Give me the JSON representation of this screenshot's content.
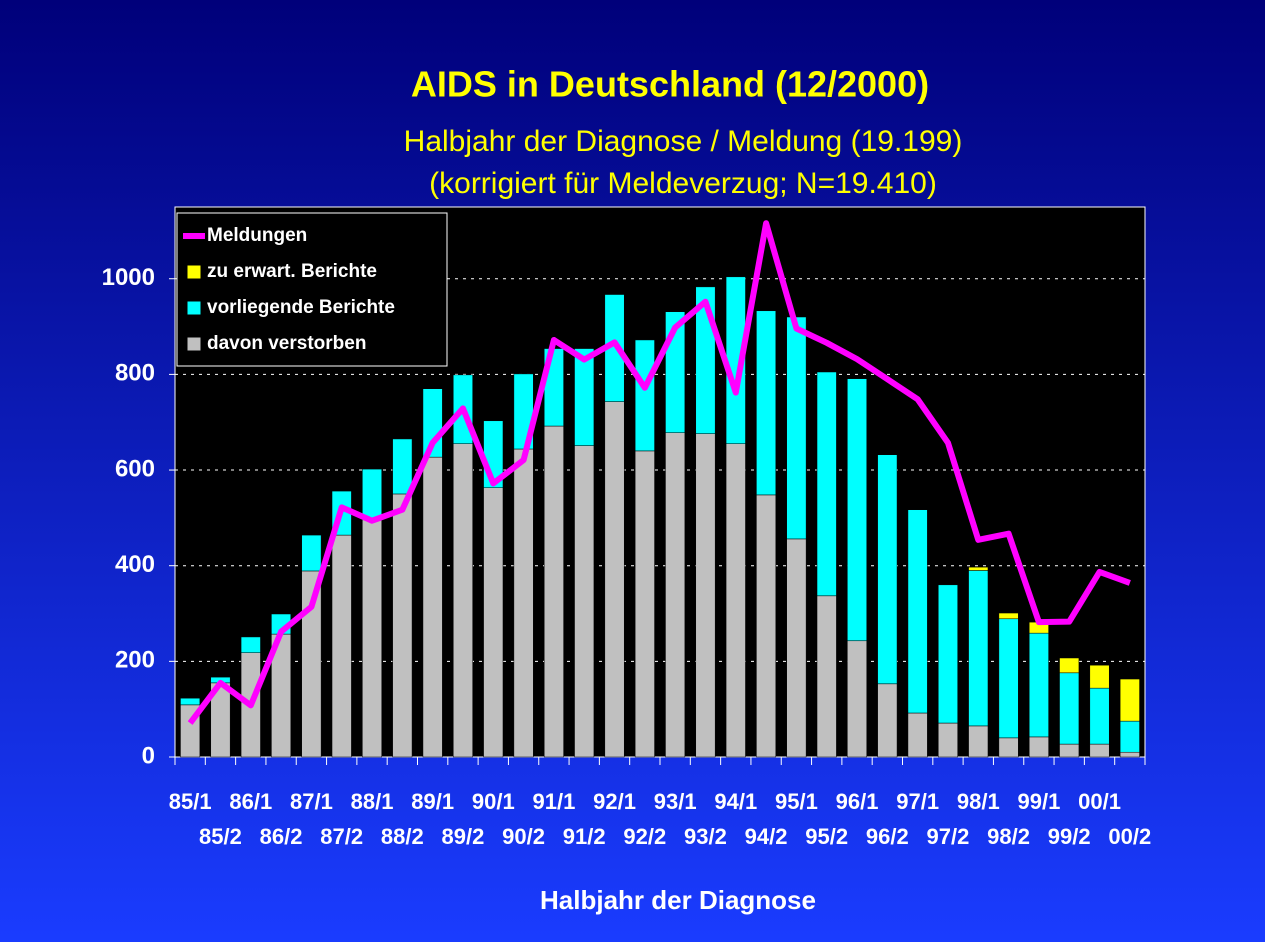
{
  "chart_data": {
    "type": "bar",
    "stacked": true,
    "title": "AIDS in Deutschland (12/2000)",
    "subtitle": [
      "Halbjahr der Diagnose / Meldung (19.199)",
      "(korrigiert für Meldeverzug; N=19.410)"
    ],
    "x_label": "Halbjahr der Diagnose",
    "categories": [
      "85/1",
      "85/2",
      "86/1",
      "86/2",
      "87/1",
      "87/2",
      "88/1",
      "88/2",
      "89/1",
      "89/2",
      "90/1",
      "90/2",
      "91/1",
      "91/2",
      "92/1",
      "92/2",
      "93/1",
      "93/2",
      "94/1",
      "94/2",
      "95/1",
      "95/2",
      "96/1",
      "96/2",
      "97/1",
      "97/2",
      "98/1",
      "98/2",
      "99/1",
      "99/2",
      "00/1",
      "00/2"
    ],
    "series": [
      {
        "name": "Meldungen",
        "type": "line",
        "color": "#ff00ff",
        "values": [
          71,
          155,
          108,
          262,
          314,
          522,
          494,
          517,
          657,
          729,
          572,
          621,
          872,
          831,
          867,
          772,
          898,
          952,
          762,
          1116,
          896,
          866,
          832,
          790,
          748,
          657,
          454,
          467,
          282,
          283,
          387,
          364
        ]
      },
      {
        "name": "zu erwart. Berichte",
        "type": "bar",
        "color": "#ffff00",
        "values": [
          0,
          0,
          0,
          0,
          0,
          0,
          0,
          0,
          0,
          0,
          0,
          0,
          0,
          0,
          0,
          0,
          0,
          0,
          0,
          0,
          0,
          0,
          0,
          0,
          0,
          0,
          7,
          12,
          23,
          31,
          48,
          88
        ]
      },
      {
        "name": "vorliegende Berichte",
        "type": "bar",
        "color": "#00ffff",
        "values": [
          14,
          12,
          33,
          42,
          75,
          92,
          106,
          115,
          143,
          144,
          140,
          157,
          162,
          203,
          224,
          232,
          253,
          307,
          349,
          385,
          464,
          468,
          548,
          479,
          425,
          289,
          325,
          249,
          217,
          149,
          117,
          65
        ]
      },
      {
        "name": "davon verstorben",
        "type": "bar",
        "color": "#c0c0c0",
        "values": [
          109,
          155,
          218,
          257,
          389,
          464,
          496,
          550,
          627,
          655,
          563,
          644,
          692,
          651,
          743,
          640,
          678,
          676,
          655,
          548,
          456,
          337,
          243,
          153,
          92,
          71,
          65,
          40,
          42,
          27,
          27,
          10
        ]
      }
    ],
    "ylim": [
      0,
      1150
    ],
    "yticks": [
      0,
      200,
      400,
      600,
      800,
      1000
    ],
    "grid": true,
    "legend": "upper left"
  }
}
